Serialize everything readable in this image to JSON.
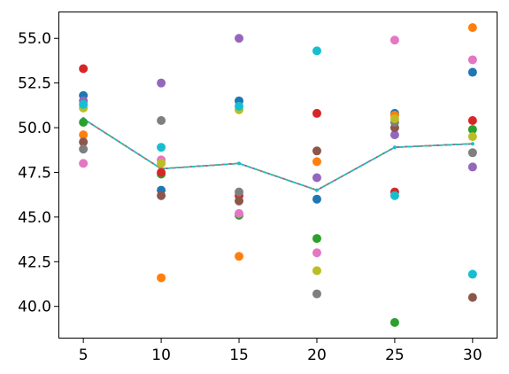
{
  "chart_data": {
    "type": "scatter",
    "title": "",
    "xlabel": "",
    "ylabel": "",
    "x": [
      5,
      10,
      15,
      20,
      25,
      30
    ],
    "xlim": [
      3.4,
      31.6
    ],
    "ylim": [
      38.2,
      56.5
    ],
    "xticks": [
      5,
      10,
      15,
      20,
      25,
      30
    ],
    "yticks": [
      40.0,
      42.5,
      45.0,
      47.5,
      50.0,
      52.5,
      55.0
    ],
    "xtick_labels": [
      "5",
      "10",
      "15",
      "20",
      "25",
      "30"
    ],
    "ytick_labels": [
      "40.0",
      "42.5",
      "45.0",
      "47.5",
      "50.0",
      "52.5",
      "55.0"
    ],
    "grid": false,
    "legend": "none",
    "series": [
      {
        "color": "#1f77b4",
        "values": [
          51.8,
          46.5,
          51.5,
          46.0,
          50.8,
          53.1
        ]
      },
      {
        "color": "#ff7f0e",
        "values": [
          49.6,
          41.6,
          42.8,
          48.1,
          50.7,
          55.6
        ]
      },
      {
        "color": "#2ca02c",
        "values": [
          50.3,
          47.4,
          45.1,
          43.8,
          39.1,
          49.9
        ]
      },
      {
        "color": "#d62728",
        "values": [
          53.3,
          47.5,
          46.2,
          50.8,
          46.4,
          50.4
        ]
      },
      {
        "color": "#9467bd",
        "values": [
          51.5,
          52.5,
          55.0,
          47.2,
          49.6,
          47.8
        ]
      },
      {
        "color": "#8c564b",
        "values": [
          49.2,
          46.2,
          45.9,
          48.7,
          50.0,
          40.5
        ]
      },
      {
        "color": "#e377c2",
        "values": [
          48.0,
          48.2,
          45.2,
          43.0,
          54.9,
          53.8
        ]
      },
      {
        "color": "#7f7f7f",
        "values": [
          48.8,
          50.4,
          46.4,
          40.7,
          50.3,
          48.6
        ]
      },
      {
        "color": "#bcbd22",
        "values": [
          51.1,
          48.0,
          51.0,
          42.0,
          50.5,
          49.5
        ]
      },
      {
        "color": "#17becf",
        "values": [
          51.3,
          48.9,
          51.2,
          54.3,
          46.2,
          41.8
        ]
      }
    ],
    "mean_line": {
      "colors": [
        "#1f77b4",
        "#ff7f0e",
        "#2ca02c",
        "#d62728",
        "#9467bd",
        "#8c564b",
        "#e377c2",
        "#7f7f7f",
        "#bcbd22",
        "#17becf"
      ],
      "style": "dashed",
      "values": [
        50.5,
        47.7,
        48.0,
        46.5,
        48.9,
        49.1
      ]
    }
  }
}
